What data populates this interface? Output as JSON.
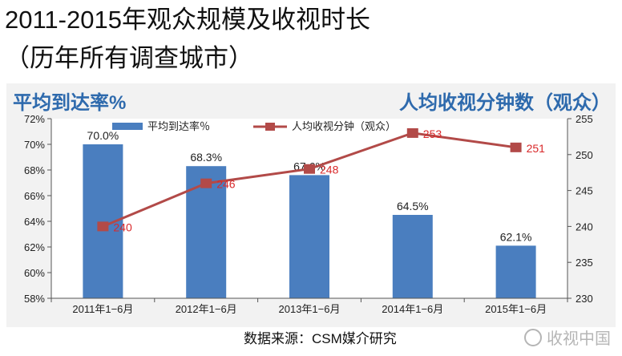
{
  "title": "2011-2015年观众规模及收视时长",
  "subtitle": "（历年所有调查城市）",
  "left_axis_title": "平均到达率%",
  "right_axis_title": "人均收视分钟数（观众）",
  "source": "数据来源：CSM媒介研究",
  "watermark": "收视中国",
  "colors": {
    "bar": "#4a7ebf",
    "line": "#b24a48",
    "title_blue": "#2e6aad"
  },
  "chart_data": {
    "type": "bar",
    "categories": [
      "2011年1−6月",
      "2012年1−6月",
      "2013年1−6月",
      "2014年1−6月",
      "2015年1−6月"
    ],
    "series": [
      {
        "name": "平均到达率％",
        "type": "bar",
        "axis": "left",
        "values": [
          70.0,
          68.3,
          67.6,
          64.5,
          62.1
        ],
        "labels": [
          "70.0%",
          "68.3%",
          "67.6%",
          "64.5%",
          "62.1%"
        ]
      },
      {
        "name": "人均收视分钟（观众）",
        "type": "line",
        "axis": "right",
        "values": [
          240,
          246,
          248,
          253,
          251
        ],
        "labels": [
          "240",
          "246",
          "248",
          "253",
          "251"
        ]
      }
    ],
    "y_left": {
      "lim": [
        58,
        72
      ],
      "ticks": [
        "58%",
        "60%",
        "62%",
        "64%",
        "66%",
        "68%",
        "70%",
        "72%"
      ]
    },
    "y_right": {
      "lim": [
        230,
        255
      ],
      "ticks": [
        "230",
        "235",
        "240",
        "245",
        "250",
        "255"
      ]
    },
    "legend": "top"
  }
}
